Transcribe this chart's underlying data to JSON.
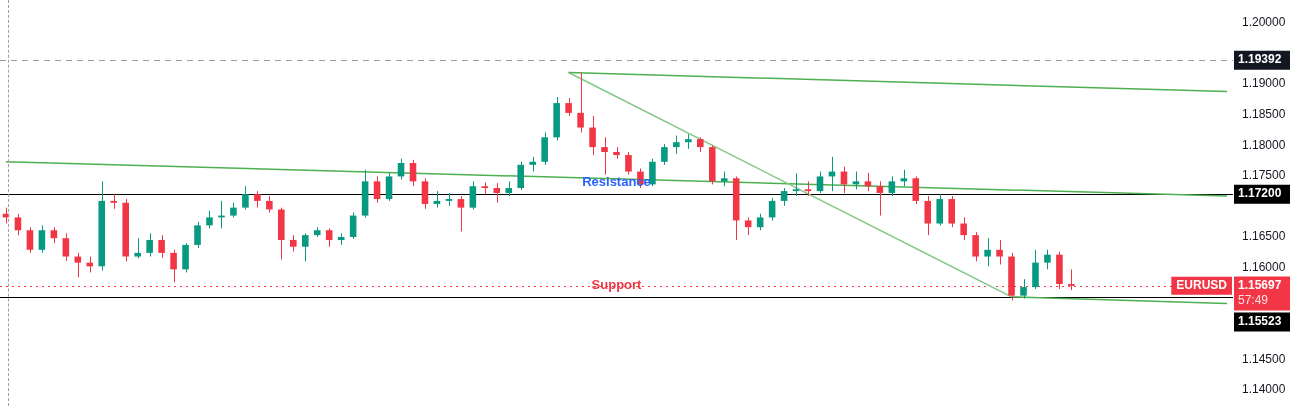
{
  "chart_data": {
    "type": "candlestick",
    "categories": [
      null,
      null,
      null,
      null,
      null,
      null,
      null,
      null,
      null,
      null,
      null,
      null,
      null,
      null,
      null,
      null,
      null,
      null,
      null,
      null,
      null,
      null,
      null,
      null,
      null,
      null,
      null,
      null,
      null,
      null,
      null,
      null,
      null,
      null,
      null,
      null,
      null,
      null,
      null,
      null,
      null,
      null,
      null,
      null,
      null,
      null,
      null,
      null,
      null,
      null,
      null,
      null,
      null,
      null,
      null,
      null,
      null,
      null,
      null,
      null,
      null,
      null,
      null,
      null,
      null,
      null,
      null,
      null,
      null,
      null,
      null,
      null,
      null,
      null,
      null,
      null,
      null,
      null,
      null,
      null,
      null,
      null,
      null,
      null,
      null,
      null,
      null,
      null,
      null,
      null,
      null,
      null,
      null,
      null,
      null,
      null,
      null,
      null,
      null,
      null,
      null,
      null,
      null
    ],
    "ohlc": [
      [
        1.1688,
        1.1698,
        1.1672,
        1.1682
      ],
      [
        1.1682,
        1.1688,
        1.1653,
        1.1661
      ],
      [
        1.1661,
        1.1666,
        1.1624,
        1.1629
      ],
      [
        1.1629,
        1.1669,
        1.1624,
        1.1661
      ],
      [
        1.1661,
        1.1666,
        1.164,
        1.1648
      ],
      [
        1.1648,
        1.1656,
        1.1611,
        1.1618
      ],
      [
        1.1618,
        1.1624,
        1.1584,
        1.1608
      ],
      [
        1.1608,
        1.1618,
        1.1592,
        1.1602
      ],
      [
        1.1602,
        1.1741,
        1.1595,
        1.1709
      ],
      [
        1.1709,
        1.172,
        1.1696,
        1.1706
      ],
      [
        1.1706,
        1.1712,
        1.161,
        1.1618
      ],
      [
        1.1618,
        1.1648,
        1.1615,
        1.1624
      ],
      [
        1.1624,
        1.1656,
        1.1618,
        1.1645
      ],
      [
        1.1645,
        1.1653,
        1.1616,
        1.1624
      ],
      [
        1.1624,
        1.1629,
        1.1576,
        1.1597
      ],
      [
        1.1597,
        1.164,
        1.1592,
        1.1637
      ],
      [
        1.1637,
        1.1675,
        1.1632,
        1.1669
      ],
      [
        1.1669,
        1.1693,
        1.1664,
        1.1682
      ],
      [
        1.1682,
        1.1709,
        1.1664,
        1.1685
      ],
      [
        1.1685,
        1.1706,
        1.1682,
        1.1698
      ],
      [
        1.1698,
        1.1733,
        1.1695,
        1.172
      ],
      [
        1.172,
        1.1725,
        1.1698,
        1.1709
      ],
      [
        1.1709,
        1.1717,
        1.169,
        1.1695
      ],
      [
        1.1695,
        1.1698,
        1.1613,
        1.1645
      ],
      [
        1.1645,
        1.1653,
        1.1626,
        1.1634
      ],
      [
        1.1634,
        1.1656,
        1.161,
        1.1653
      ],
      [
        1.1653,
        1.1666,
        1.165,
        1.1661
      ],
      [
        1.1661,
        1.1664,
        1.1634,
        1.1645
      ],
      [
        1.1645,
        1.1656,
        1.1637,
        1.165
      ],
      [
        1.165,
        1.169,
        1.1647,
        1.1685
      ],
      [
        1.1685,
        1.176,
        1.1682,
        1.1741
      ],
      [
        1.1741,
        1.1749,
        1.1706,
        1.1712
      ],
      [
        1.1712,
        1.1755,
        1.1709,
        1.1749
      ],
      [
        1.1749,
        1.1778,
        1.1744,
        1.1771
      ],
      [
        1.1771,
        1.1776,
        1.1733,
        1.1741
      ],
      [
        1.1741,
        1.1746,
        1.1696,
        1.1704
      ],
      [
        1.1704,
        1.1725,
        1.1698,
        1.1709
      ],
      [
        1.1709,
        1.1722,
        1.1701,
        1.1712
      ],
      [
        1.1712,
        1.1717,
        1.1659,
        1.1698
      ],
      [
        1.1698,
        1.1741,
        1.1695,
        1.1733
      ],
      [
        1.1733,
        1.1739,
        1.172,
        1.173
      ],
      [
        1.173,
        1.1738,
        1.1706,
        1.1722
      ],
      [
        1.1722,
        1.1741,
        1.1717,
        1.173
      ],
      [
        1.173,
        1.1773,
        1.1727,
        1.1768
      ],
      [
        1.1768,
        1.1781,
        1.1757,
        1.1773
      ],
      [
        1.1773,
        1.1821,
        1.1768,
        1.1813
      ],
      [
        1.1813,
        1.1879,
        1.1808,
        1.1869
      ],
      [
        1.1869,
        1.1877,
        1.1848,
        1.1853
      ],
      [
        1.1853,
        1.1919,
        1.1821,
        1.1829
      ],
      [
        1.1829,
        1.1848,
        1.1784,
        1.1797
      ],
      [
        1.1797,
        1.1813,
        1.1752,
        1.1789
      ],
      [
        1.1789,
        1.1797,
        1.1778,
        1.1784
      ],
      [
        1.1784,
        1.1789,
        1.1752,
        1.1757
      ],
      [
        1.1757,
        1.1762,
        1.173,
        1.1736
      ],
      [
        1.1736,
        1.1778,
        1.1733,
        1.1773
      ],
      [
        1.1773,
        1.1802,
        1.1768,
        1.1797
      ],
      [
        1.1797,
        1.1816,
        1.1786,
        1.1805
      ],
      [
        1.1805,
        1.1818,
        1.1794,
        1.181
      ],
      [
        1.181,
        1.1813,
        1.1789,
        1.1797
      ],
      [
        1.1797,
        1.18,
        1.1736,
        1.1741
      ],
      [
        1.1741,
        1.1757,
        1.1733,
        1.1746
      ],
      [
        1.1746,
        1.1749,
        1.1645,
        1.1677
      ],
      [
        1.1677,
        1.1682,
        1.1653,
        1.1666
      ],
      [
        1.1666,
        1.1688,
        1.1661,
        1.1682
      ],
      [
        1.1682,
        1.1714,
        1.1677,
        1.1709
      ],
      [
        1.1709,
        1.173,
        1.1701,
        1.1725
      ],
      [
        1.1725,
        1.1754,
        1.1717,
        1.1728
      ],
      [
        1.1728,
        1.1741,
        1.1717,
        1.1725
      ],
      [
        1.1725,
        1.1757,
        1.1722,
        1.1749
      ],
      [
        1.1749,
        1.1781,
        1.1725,
        1.1757
      ],
      [
        1.1757,
        1.1765,
        1.1722,
        1.1736
      ],
      [
        1.1736,
        1.1757,
        1.1728,
        1.1741
      ],
      [
        1.1741,
        1.1755,
        1.1725,
        1.1733
      ],
      [
        1.1733,
        1.1741,
        1.1685,
        1.1722
      ],
      [
        1.1722,
        1.1749,
        1.1717,
        1.1741
      ],
      [
        1.1741,
        1.176,
        1.1733,
        1.1746
      ],
      [
        1.1746,
        1.1749,
        1.1704,
        1.1709
      ],
      [
        1.1709,
        1.1717,
        1.1653,
        1.1672
      ],
      [
        1.1672,
        1.172,
        1.1669,
        1.1712
      ],
      [
        1.1712,
        1.1717,
        1.1666,
        1.1672
      ],
      [
        1.1672,
        1.1682,
        1.1645,
        1.1653
      ],
      [
        1.1653,
        1.1658,
        1.161,
        1.1618
      ],
      [
        1.1618,
        1.1648,
        1.1602,
        1.1629
      ],
      [
        1.1629,
        1.1645,
        1.1605,
        1.1618
      ],
      [
        1.1618,
        1.1624,
        1.1546,
        1.1554
      ],
      [
        1.1554,
        1.1581,
        1.1549,
        1.1568
      ],
      [
        1.1568,
        1.1629,
        1.1565,
        1.1608
      ],
      [
        1.1608,
        1.1629,
        1.1597,
        1.1621
      ],
      [
        1.1621,
        1.1626,
        1.1565,
        1.1573
      ],
      [
        1.1573,
        1.1597,
        1.1563,
        1.157
      ],
      null,
      null,
      null,
      null,
      null,
      null,
      null,
      null,
      null,
      null,
      null,
      null,
      null
    ],
    "ylim": [
      1.14,
      1.2
    ],
    "yticks": [
      {
        "value": 1.14,
        "label": "1.14000"
      },
      {
        "value": 1.145,
        "label": "1.14500"
      },
      {
        "value": 1.16,
        "label": "1.16000"
      },
      {
        "value": 1.165,
        "label": "1.16500"
      },
      {
        "value": 1.175,
        "label": "1.17500"
      },
      {
        "value": 1.18,
        "label": "1.18000"
      },
      {
        "value": 1.185,
        "label": "1.18500"
      },
      {
        "value": 1.19,
        "label": "1.19000"
      },
      {
        "value": 1.2,
        "label": "1.20000"
      }
    ],
    "tick_labels": "y",
    "grid": false,
    "legend": false,
    "series": [
      {
        "type": "line",
        "color": "#4caf50",
        "values": [
          null,
          null,
          null,
          null,
          null,
          null,
          null,
          null,
          null,
          null,
          null,
          null,
          null,
          null,
          null,
          null,
          null,
          null,
          null,
          null,
          null,
          null,
          null,
          null,
          null,
          null,
          null,
          null,
          null,
          null,
          null,
          null,
          null,
          null,
          null,
          null,
          null,
          null,
          null,
          null,
          null,
          null,
          null,
          null,
          null,
          null,
          null,
          1.1919,
          null,
          null,
          null,
          null,
          null,
          null,
          null,
          null,
          null,
          null,
          null,
          null,
          null,
          null,
          null,
          null,
          null,
          null,
          null,
          null,
          null,
          null,
          null,
          null,
          null,
          null,
          null,
          null,
          null,
          null,
          null,
          null,
          null,
          null,
          null,
          null,
          null,
          null,
          null,
          null,
          null,
          null,
          null,
          null,
          null,
          null,
          null,
          null,
          null,
          null,
          null,
          null,
          null,
          null,
          1.1888
        ]
      },
      {
        "type": "line",
        "color": "#81c784",
        "values": [
          null,
          null,
          null,
          null,
          null,
          null,
          null,
          null,
          null,
          null,
          null,
          null,
          null,
          null,
          null,
          null,
          null,
          null,
          null,
          null,
          null,
          null,
          null,
          null,
          null,
          null,
          null,
          null,
          null,
          null,
          null,
          null,
          null,
          null,
          null,
          null,
          null,
          null,
          null,
          null,
          null,
          null,
          null,
          null,
          null,
          null,
          null,
          1.1919,
          null,
          null,
          null,
          null,
          null,
          null,
          null,
          null,
          null,
          null,
          null,
          null,
          null,
          null,
          null,
          null,
          null,
          null,
          null,
          null,
          null,
          null,
          null,
          null,
          null,
          null,
          null,
          null,
          null,
          null,
          null,
          null,
          null,
          null,
          null,
          null,
          1.1552,
          null,
          null,
          null,
          null,
          null,
          null,
          null,
          null,
          null,
          null,
          null,
          null,
          null,
          null,
          null,
          null,
          null,
          null
        ]
      },
      {
        "type": "line",
        "color": "#4caf50",
        "values": [
          1.1773,
          null,
          null,
          null,
          null,
          null,
          null,
          null,
          null,
          null,
          null,
          null,
          null,
          null,
          null,
          null,
          null,
          null,
          null,
          null,
          null,
          null,
          null,
          null,
          null,
          null,
          null,
          null,
          null,
          null,
          null,
          null,
          null,
          null,
          null,
          null,
          null,
          null,
          null,
          null,
          null,
          null,
          null,
          null,
          null,
          null,
          null,
          null,
          null,
          null,
          null,
          null,
          null,
          null,
          null,
          null,
          null,
          null,
          null,
          null,
          null,
          null,
          null,
          null,
          null,
          null,
          null,
          null,
          null,
          null,
          null,
          null,
          null,
          null,
          null,
          null,
          null,
          null,
          null,
          null,
          null,
          null,
          null,
          null,
          null,
          null,
          null,
          null,
          null,
          null,
          null,
          null,
          null,
          null,
          null,
          null,
          null,
          null,
          null,
          null,
          null,
          null,
          1.1717
        ]
      },
      {
        "type": "line",
        "color": "#4caf50",
        "values": [
          null,
          null,
          null,
          null,
          null,
          null,
          null,
          null,
          null,
          null,
          null,
          null,
          null,
          null,
          null,
          null,
          null,
          null,
          null,
          null,
          null,
          null,
          null,
          null,
          null,
          null,
          null,
          null,
          null,
          null,
          null,
          null,
          null,
          null,
          null,
          null,
          null,
          null,
          null,
          null,
          null,
          null,
          null,
          null,
          null,
          null,
          null,
          null,
          null,
          null,
          null,
          null,
          null,
          null,
          null,
          null,
          null,
          null,
          null,
          null,
          null,
          null,
          null,
          null,
          null,
          null,
          null,
          null,
          null,
          null,
          null,
          null,
          null,
          null,
          null,
          null,
          null,
          null,
          null,
          null,
          null,
          null,
          null,
          null,
          1.1552,
          null,
          null,
          null,
          null,
          null,
          null,
          null,
          null,
          null,
          null,
          null,
          null,
          null,
          null,
          null,
          null,
          null,
          1.1541
        ]
      }
    ],
    "ref_lines": [
      {
        "axis": "y",
        "value": 1.19392,
        "label": "1.19392",
        "color": "#9e9e9e",
        "line_style": "dashed"
      },
      {
        "axis": "y",
        "value": 1.172,
        "label": "1.17200",
        "color": "#000000",
        "line_style": "solid"
      },
      {
        "axis": "y",
        "value": 1.15697,
        "label": "1.15697",
        "color": "#f23645",
        "line_style": "dotted"
      },
      {
        "axis": "y",
        "value": 1.15523,
        "label": "1.15523",
        "color": "#000000",
        "line_style": "solid"
      }
    ],
    "annotations": [
      {
        "text": "Resistance",
        "y": 1.1739
      },
      {
        "text": "Support",
        "y": 1.157
      },
      {
        "text": "EURUSD",
        "y": 1.157
      },
      "57:49"
    ]
  }
}
